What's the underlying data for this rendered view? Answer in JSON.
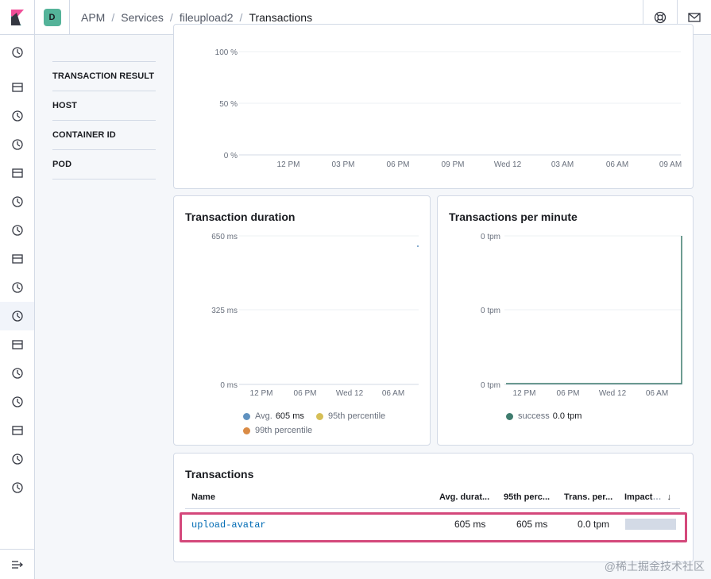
{
  "breadcrumbs": [
    "APM",
    "Services",
    "fileupload2",
    "Transactions"
  ],
  "space_initial": "D",
  "sidebar_icons": [
    "clock-icon",
    "compass-icon",
    "visualize-icon",
    "dashboard-icon",
    "canvas-icon",
    "maps-icon",
    "ml-icon",
    "users-icon",
    "logs-icon",
    "apm-icon",
    "uptime-icon",
    "siem-icon",
    "graph-icon",
    "dev-tools-icon",
    "monitoring-icon",
    "management-icon"
  ],
  "filters": [
    "TRANSACTION RESULT",
    "HOST",
    "CONTAINER ID",
    "POD"
  ],
  "error_chart": {
    "y_ticks": [
      "100 %",
      "50 %",
      "0 %"
    ],
    "x_ticks": [
      "12 PM",
      "03 PM",
      "06 PM",
      "09 PM",
      "Wed 12",
      "03 AM",
      "06 AM",
      "09 AM"
    ]
  },
  "duration_chart": {
    "title": "Transaction duration",
    "y_ticks": [
      "650 ms",
      "325 ms",
      "0 ms"
    ],
    "x_ticks": [
      "12 PM",
      "06 PM",
      "Wed 12",
      "06 AM"
    ],
    "legend": {
      "avg_label": "Avg.",
      "avg_value": "605 ms",
      "p95_label": "95th percentile",
      "p99_label": "99th percentile"
    }
  },
  "tpm_chart": {
    "title": "Transactions per minute",
    "y_ticks": [
      "0 tpm",
      "0 tpm",
      "0 tpm"
    ],
    "x_ticks": [
      "12 PM",
      "06 PM",
      "Wed 12",
      "06 AM"
    ],
    "legend": {
      "success_label": "success",
      "success_value": "0.0 tpm"
    }
  },
  "transactions": {
    "title": "Transactions",
    "columns": [
      "Name",
      "Avg. durat...",
      "95th perc...",
      "Trans. per...",
      "Impact"
    ],
    "rows": [
      {
        "name": "upload-avatar",
        "avg": "605 ms",
        "p95": "605 ms",
        "tpm": "0.0 tpm",
        "impact": 1.0
      }
    ]
  },
  "watermark": "@稀土掘金技术社区",
  "colors": {
    "avg": "#6092c0",
    "p95": "#d6bf57",
    "p99": "#da8b45",
    "success": "#3f7c6e",
    "highlight": "#d4487b"
  }
}
